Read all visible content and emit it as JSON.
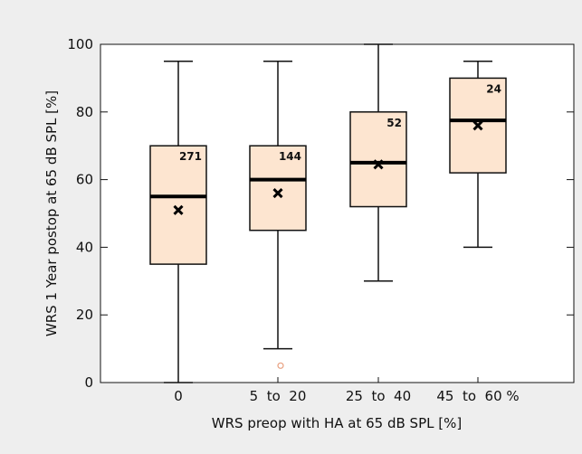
{
  "chart_data": {
    "type": "box",
    "xlabel": "WRS preop with HA at 65 dB SPL [%]",
    "ylabel": "WRS 1 Year postop at 65 dB SPL [%]",
    "ylim": [
      0,
      100
    ],
    "yticks": [
      0,
      20,
      40,
      60,
      80,
      100
    ],
    "categories": [
      "0",
      "5  to  20",
      "25  to  40",
      "45  to  60 %"
    ],
    "boxes": [
      {
        "category": "0",
        "min": 0,
        "q1": 35,
        "median": 55,
        "q3": 70,
        "max": 95,
        "mean": 51,
        "n": "271"
      },
      {
        "category": "5 to 20",
        "min": 10,
        "q1": 45,
        "median": 60,
        "q3": 70,
        "max": 95,
        "mean": 56,
        "n": "144",
        "outliers": [
          5
        ]
      },
      {
        "category": "25 to 40",
        "min": 30,
        "q1": 52,
        "median": 65,
        "q3": 80,
        "max": 100,
        "mean": 64.5,
        "n": "52"
      },
      {
        "category": "45 to 60",
        "min": 40,
        "q1": 62,
        "median": 77.5,
        "q3": 90,
        "max": 95,
        "mean": 76,
        "n": "24"
      }
    ],
    "grid": false,
    "colors": {
      "box_fill": "#fde5d0",
      "box_stroke": "#111111",
      "outlier": "#e8a080",
      "background": "#eeeeee"
    }
  }
}
